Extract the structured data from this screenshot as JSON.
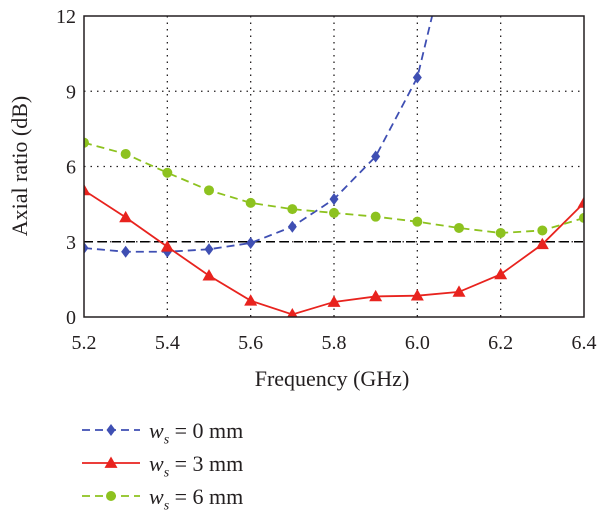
{
  "chart_data": {
    "type": "line",
    "xlabel": "Frequency (GHz)",
    "ylabel": "Axial ratio (dB)",
    "xlim": [
      5.2,
      6.4
    ],
    "ylim": [
      0,
      12
    ],
    "xticks": [
      "5.2",
      "5.4",
      "5.6",
      "5.8",
      "6.0",
      "6.2",
      "6.4"
    ],
    "yticks": [
      "0",
      "3",
      "6",
      "9",
      "12"
    ],
    "grid": "dotted",
    "reference_line": {
      "y": 3,
      "style": "dashed",
      "color": "#000000"
    },
    "legend_position": "below",
    "x": [
      5.2,
      5.3,
      5.4,
      5.5,
      5.6,
      5.7,
      5.8,
      5.9,
      6.0,
      6.1,
      6.2,
      6.3,
      6.4
    ],
    "series": [
      {
        "var": "w",
        "sub": "s",
        "value_text": " = 0 mm",
        "color": "#3f4fb3",
        "marker": "diamond",
        "line": "dashed",
        "values": [
          2.75,
          2.6,
          2.6,
          2.7,
          2.95,
          3.6,
          4.7,
          6.4,
          9.55,
          null,
          null,
          null,
          null
        ],
        "continuation": {
          "x": 6.05,
          "y": 13.0
        }
      },
      {
        "var": "w",
        "sub": "s",
        "value_text": " = 3 mm",
        "color": "#e8231e",
        "marker": "triangle",
        "line": "solid",
        "values": [
          5.05,
          3.97,
          2.8,
          1.65,
          0.65,
          0.1,
          0.6,
          0.82,
          0.85,
          1.0,
          1.7,
          2.9,
          4.55
        ]
      },
      {
        "var": "w",
        "sub": "s",
        "value_text": " = 6 mm",
        "color": "#8dc21f",
        "marker": "circle",
        "line": "dashed",
        "values": [
          6.95,
          6.5,
          5.75,
          5.05,
          4.55,
          4.3,
          4.15,
          4.0,
          3.8,
          3.55,
          3.35,
          3.45,
          3.95
        ]
      }
    ]
  }
}
